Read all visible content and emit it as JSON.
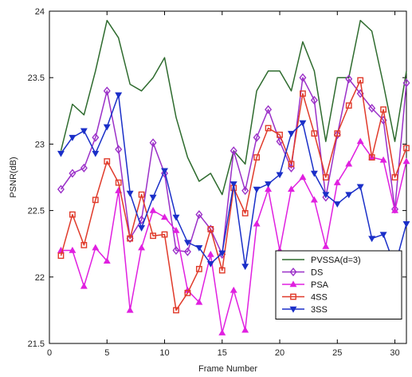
{
  "chart_data": {
    "type": "line",
    "xlabel": "Frame Number",
    "ylabel": "PSNR(dB)",
    "xlim": [
      0,
      31
    ],
    "ylim": [
      21.5,
      24
    ],
    "xticks": [
      0,
      5,
      10,
      15,
      20,
      25,
      30
    ],
    "yticks": [
      21.5,
      22,
      22.5,
      23,
      23.5,
      24
    ],
    "xtick_labels": [
      "0",
      "5",
      "10",
      "15",
      "20",
      "25",
      "30"
    ],
    "ytick_labels": [
      "21.5",
      "22",
      "22.5",
      "23",
      "23.5",
      "24"
    ],
    "grid": false,
    "legend_position": "bottom-right",
    "x": [
      1,
      2,
      3,
      4,
      5,
      6,
      7,
      8,
      9,
      10,
      11,
      12,
      13,
      14,
      15,
      16,
      17,
      18,
      19,
      20,
      21,
      22,
      23,
      24,
      25,
      26,
      27,
      28,
      29,
      30,
      31
    ],
    "series": [
      {
        "name": "PVSSA(d=3)",
        "color": "#2e6b2e",
        "marker": "none",
        "values": [
          22.95,
          23.3,
          23.22,
          23.55,
          23.93,
          23.8,
          23.45,
          23.4,
          23.5,
          23.65,
          23.2,
          22.9,
          22.72,
          22.78,
          22.62,
          22.95,
          22.85,
          23.4,
          23.55,
          23.55,
          23.4,
          23.77,
          23.55,
          23.02,
          23.5,
          23.5,
          23.93,
          23.85,
          23.45,
          23.02,
          23.55
        ]
      },
      {
        "name": "DS",
        "color": "#9b30c8",
        "marker": "diamond",
        "values": [
          22.66,
          22.78,
          22.82,
          23.05,
          23.4,
          22.96,
          22.29,
          22.43,
          23.01,
          22.78,
          22.2,
          22.19,
          22.47,
          22.36,
          22.17,
          22.95,
          22.65,
          23.05,
          23.26,
          23.02,
          22.82,
          23.5,
          23.33,
          22.6,
          23.07,
          23.49,
          23.38,
          23.27,
          23.18,
          22.51,
          23.46
        ]
      },
      {
        "name": "PSA",
        "color": "#e020e0",
        "marker": "triangle-up",
        "values": [
          22.2,
          22.2,
          21.93,
          22.22,
          22.12,
          22.65,
          21.75,
          22.22,
          22.5,
          22.45,
          22.35,
          21.9,
          21.81,
          22.17,
          21.58,
          21.9,
          21.6,
          22.4,
          22.66,
          22.2,
          22.66,
          22.75,
          22.58,
          22.23,
          22.71,
          22.85,
          23.02,
          22.9,
          22.88,
          22.5,
          22.87
        ]
      },
      {
        "name": "4SS",
        "color": "#e03a2a",
        "marker": "square",
        "values": [
          22.16,
          22.47,
          22.24,
          22.58,
          22.87,
          22.71,
          22.29,
          22.62,
          22.31,
          22.32,
          21.75,
          21.88,
          22.06,
          22.36,
          22.05,
          22.67,
          22.48,
          22.9,
          23.12,
          23.07,
          22.85,
          23.38,
          23.08,
          22.75,
          23.08,
          23.29,
          23.48,
          22.9,
          23.26,
          22.75,
          22.97
        ]
      },
      {
        "name": "3SS",
        "color": "#1a2fc8",
        "marker": "triangle-down",
        "values": [
          22.93,
          23.05,
          23.1,
          22.93,
          23.13,
          23.37,
          22.63,
          22.37,
          22.6,
          22.8,
          22.45,
          22.26,
          22.22,
          22.1,
          22.18,
          22.7,
          22.08,
          22.66,
          22.7,
          22.77,
          23.08,
          23.16,
          22.78,
          22.62,
          22.55,
          22.62,
          22.68,
          22.29,
          22.32,
          22.08,
          22.4
        ]
      }
    ]
  }
}
